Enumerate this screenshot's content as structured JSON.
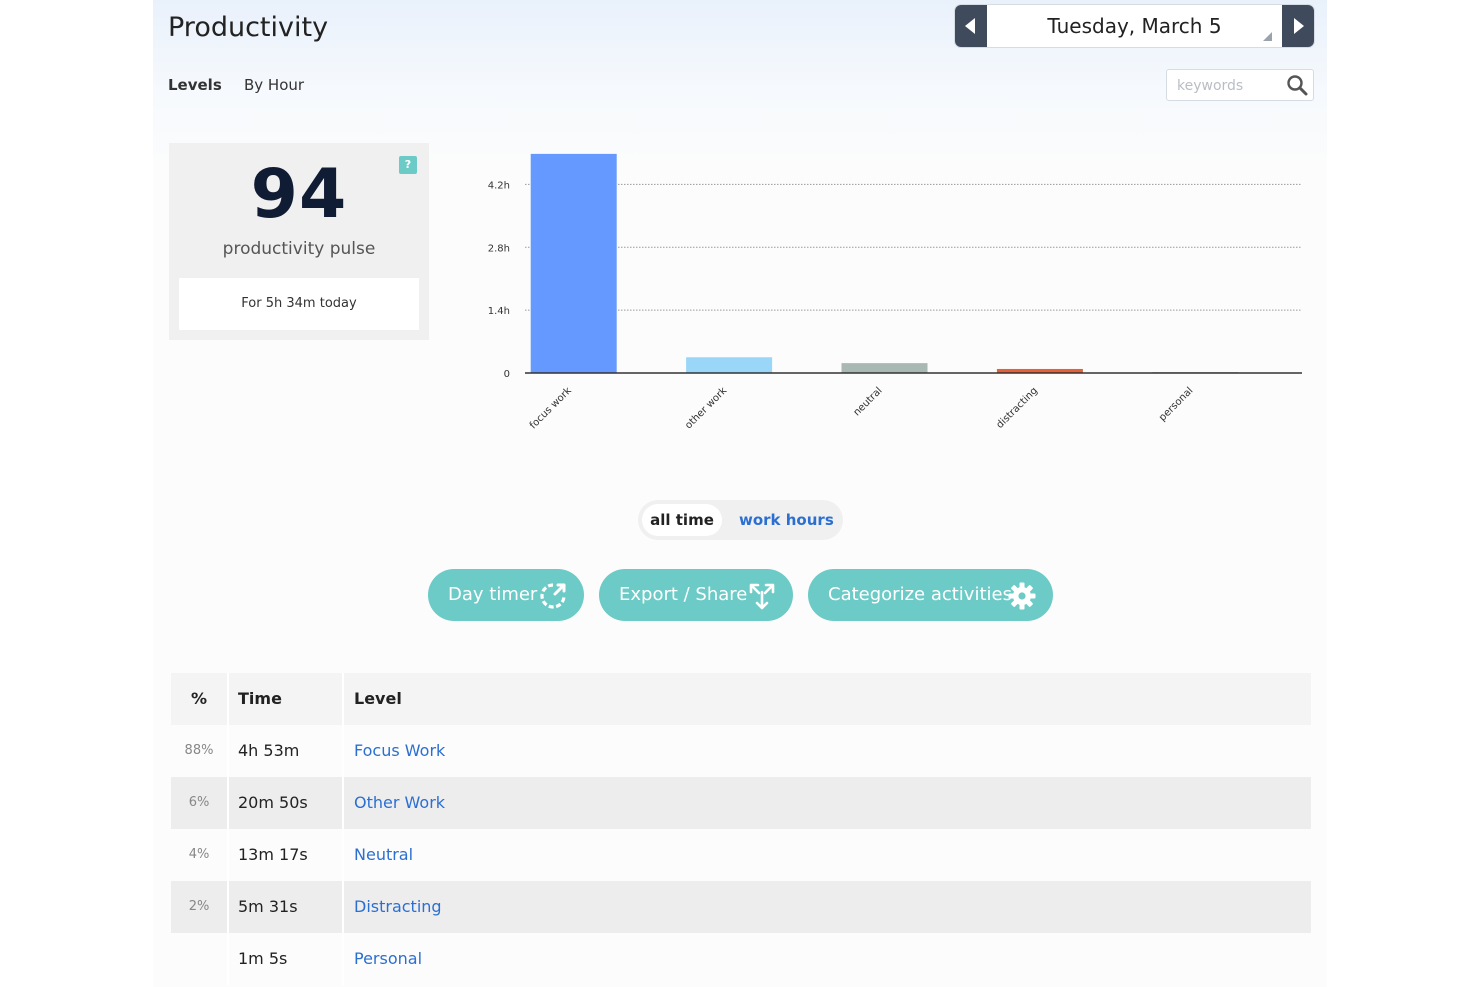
{
  "header": {
    "title": "Productivity",
    "tabs": [
      {
        "label": "Levels",
        "active": true
      },
      {
        "label": "By Hour",
        "active": false
      }
    ],
    "date": "Tuesday, March 5",
    "search_placeholder": "keywords"
  },
  "pulse": {
    "help": "?",
    "score": "94",
    "label": "productivity pulse",
    "today": "For 5h 34m today"
  },
  "chart_data": {
    "type": "bar",
    "categories": [
      "focus work",
      "other work",
      "neutral",
      "distracting",
      "personal"
    ],
    "values": [
      4.88,
      0.35,
      0.22,
      0.09,
      0.02
    ],
    "colors": [
      "#6699ff",
      "#99d6f7",
      "#a9b8b2",
      "#e0613a",
      "#bbbbbb"
    ],
    "yticks": [
      "0",
      "1.4h",
      "2.8h",
      "4.2h"
    ],
    "ytick_values": [
      0,
      1.4,
      2.8,
      4.2
    ],
    "ylim": [
      0,
      5.1
    ],
    "grid": true,
    "title": "",
    "xlabel": "",
    "ylabel": ""
  },
  "range_toggle": {
    "options": [
      "all time",
      "work hours"
    ],
    "selected": "all time"
  },
  "actions": [
    {
      "label": "Day timer",
      "icon": "timer-icon"
    },
    {
      "label": "Export / Share",
      "icon": "share-icon"
    },
    {
      "label": "Categorize activities",
      "icon": "gear-icon"
    }
  ],
  "table": {
    "headers": [
      "%",
      "Time",
      "Level"
    ],
    "rows": [
      {
        "pct": "88%",
        "time": "4h 53m",
        "level": "Focus Work"
      },
      {
        "pct": "6%",
        "time": "20m 50s",
        "level": "Other Work"
      },
      {
        "pct": "4%",
        "time": "13m 17s",
        "level": "Neutral"
      },
      {
        "pct": "2%",
        "time": "5m 31s",
        "level": "Distracting"
      },
      {
        "pct": "",
        "time": "1m 5s",
        "level": "Personal"
      }
    ]
  },
  "colors": {
    "accent": "#6ccbc6",
    "link": "#2b6fd1",
    "nav_dark": "#3f4b5c",
    "score": "#101b34"
  }
}
